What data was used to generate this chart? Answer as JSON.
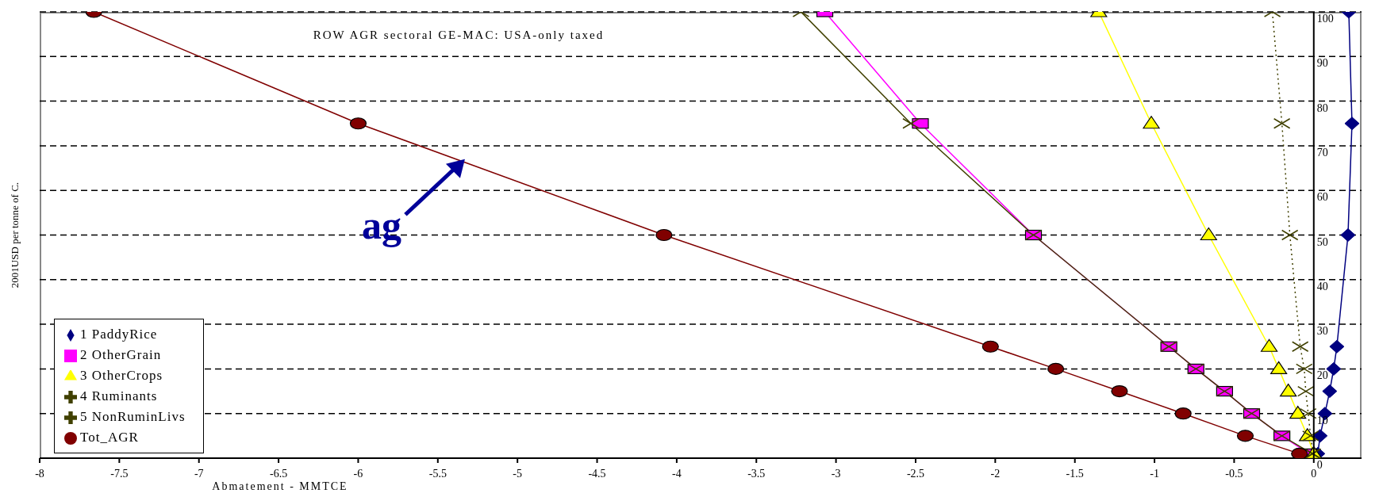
{
  "chart_data": {
    "type": "line",
    "title": "ROW  AGR  sectoral GE-MAC: USA-only  taxed",
    "xlabel": "Abmatement - MMTCE",
    "ylabel": "2001USD  per tonne of C.",
    "xlim": [
      -8,
      0.3
    ],
    "xticks": [
      -8,
      -7.5,
      -7,
      -6.5,
      -6,
      -5.5,
      -5,
      -4.5,
      -4,
      -3.5,
      -3,
      -2.5,
      -2,
      -1.5,
      -1,
      -0.5,
      0
    ],
    "ylim": [
      0,
      100
    ],
    "yticks": [
      0,
      10,
      20,
      30,
      40,
      50,
      60,
      70,
      80,
      90,
      100
    ],
    "grid": "y",
    "legend": "bottom left",
    "line_style": "solid",
    "annotations": [
      {
        "text": "ag",
        "x": -5.33,
        "y": 67
      }
    ],
    "series": [
      {
        "name": "1 PaddyRice",
        "color": "#000080",
        "marker": "diamond",
        "x": [
          0.22,
          0.24,
          0.215,
          0.145,
          0.125,
          0.1,
          0.07,
          0.04,
          0.025
        ],
        "values": [
          100,
          75,
          50,
          25,
          20,
          15,
          10,
          5,
          1
        ]
      },
      {
        "name": "2 OtherGrain",
        "color": "#ff00ff",
        "marker": "square",
        "x": [
          -3.07,
          -2.47,
          -1.76,
          -0.91,
          -0.74,
          -0.56,
          -0.39,
          -0.2,
          -0.03
        ],
        "values": [
          100,
          75,
          50,
          25,
          20,
          15,
          10,
          5,
          1
        ]
      },
      {
        "name": "3 OtherCrops",
        "color": "#ffff00",
        "marker": "triangle",
        "x": [
          -1.35,
          -1.02,
          -0.66,
          -0.28,
          -0.22,
          -0.16,
          -0.1,
          -0.04,
          0
        ],
        "values": [
          100,
          75,
          50,
          25,
          20,
          15,
          10,
          5,
          1
        ]
      },
      {
        "name": "4 Ruminants",
        "color": "#404000",
        "marker": "cross",
        "x": [
          -3.22,
          -2.53,
          -1.76,
          -0.91,
          -0.74,
          -0.56,
          -0.39,
          -0.2,
          -0.01
        ],
        "values": [
          100,
          75,
          50,
          25,
          20,
          15,
          10,
          5,
          1
        ]
      },
      {
        "name": "5 NonRuminLivs",
        "color": "#404000",
        "marker": "cross",
        "line_style": "dotted",
        "x": [
          -0.26,
          -0.2,
          -0.15,
          -0.085,
          -0.06,
          -0.05,
          -0.035,
          -0.02,
          -0.005
        ],
        "values": [
          100,
          75,
          50,
          25,
          20,
          15,
          10,
          5,
          1
        ]
      },
      {
        "name": "Tot_AGR",
        "color": "#800000",
        "marker": "circle",
        "x": [
          -7.66,
          -6,
          -4.08,
          -2.03,
          -1.62,
          -1.22,
          -0.82,
          -0.43,
          -0.09
        ],
        "values": [
          100,
          75,
          50,
          25,
          20,
          15,
          10,
          5,
          1
        ]
      }
    ]
  }
}
